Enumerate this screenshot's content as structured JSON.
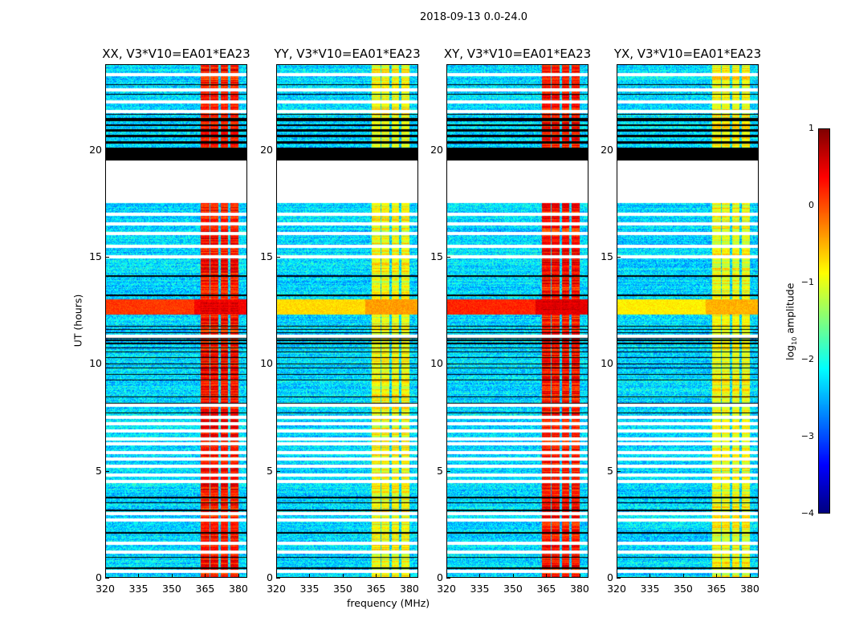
{
  "chart_data": {
    "type": "heatmap",
    "title": "2018-09-13 0.0-24.0",
    "xlabel": "frequency (MHz)",
    "ylabel": "UT (hours)",
    "xlim": [
      320,
      384
    ],
    "ylim": [
      0,
      24
    ],
    "xticks": [
      "320",
      "335",
      "350",
      "365",
      "380"
    ],
    "yticks": [
      "0",
      "5",
      "10",
      "15",
      "20"
    ],
    "colorbar": {
      "label_prefix": "log",
      "label_sub": "10",
      "label_suffix": " amplitude",
      "range": [
        -4,
        1
      ],
      "ticks": [
        "1",
        "0",
        "−1",
        "−2",
        "−3",
        "−4"
      ],
      "colormap": "jet"
    },
    "panels": [
      {
        "title": "XX, V3*V10=EA01*EA23",
        "rfi_level": 0.3,
        "band_level": 0.4
      },
      {
        "title": "YY, V3*V10=EA01*EA23",
        "rfi_level": -0.9,
        "band_level": -0.4
      },
      {
        "title": "XY, V3*V10=EA01*EA23",
        "rfi_level": 0.3,
        "band_level": 0.5
      },
      {
        "title": "YX, V3*V10=EA01*EA23",
        "rfi_level": -0.9,
        "band_level": -0.5
      }
    ],
    "background_level": -2.3,
    "rfi_channels_mhz": [
      [
        363,
        367
      ],
      [
        367.5,
        371
      ],
      [
        372,
        375.5
      ],
      [
        376.5,
        380
      ]
    ],
    "bright_time_band_hours": [
      12.3,
      13.0
    ],
    "blank_hours": [
      [
        17.5,
        19.5
      ]
    ],
    "flagged_black_hours": [
      [
        19.5,
        20.1
      ],
      [
        20.3,
        20.4
      ],
      [
        20.6,
        20.7
      ],
      [
        20.85,
        20.95
      ],
      [
        21.1,
        21.2
      ],
      [
        21.35,
        21.5
      ]
    ],
    "white_line_hours": [
      0.3,
      1.2,
      1.6,
      2.7,
      3.0,
      4.5,
      4.8,
      5.2,
      5.55,
      5.85,
      6.25,
      6.5,
      6.85,
      7.2,
      7.5,
      8.05,
      11.3,
      15.0,
      15.5,
      16.1,
      16.55,
      17.0,
      21.8,
      22.25,
      22.8,
      23.5
    ],
    "black_line_hours": [
      0.45,
      0.95,
      2.1,
      3.15,
      3.5,
      3.75,
      7.7,
      8.15,
      8.45,
      9.25,
      9.5,
      9.8,
      10.0,
      10.3,
      10.55,
      10.75,
      10.95,
      11.1,
      11.2,
      11.45,
      11.6,
      11.75,
      13.2,
      14.1,
      21.65,
      22.6,
      23.05
    ]
  }
}
